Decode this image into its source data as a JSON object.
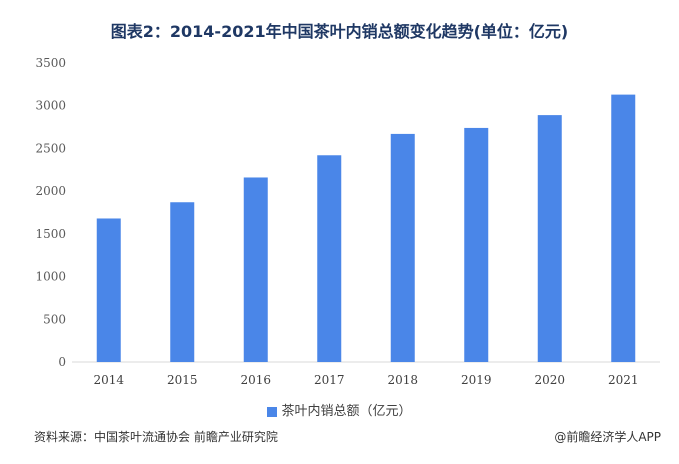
{
  "title": "图表2：2014-2021年中国茶叶内销总额变化趋势(单位：亿元)",
  "legend_label": "茶叶内销总额（亿元）",
  "source": "资料来源：中国茶叶流通协会 前瞻产业研究院",
  "brand": "@前瞻经济学人APP",
  "colors": {
    "bar": "#4a86e8",
    "axis": "#d9d9d9"
  },
  "chart_data": {
    "type": "bar",
    "categories": [
      "2014",
      "2015",
      "2016",
      "2017",
      "2018",
      "2019",
      "2020",
      "2021"
    ],
    "series": [
      {
        "name": "茶叶内销总额（亿元）",
        "values": [
          1680,
          1870,
          2160,
          2420,
          2670,
          2740,
          2890,
          3130
        ]
      }
    ],
    "ylim": [
      0,
      3500
    ],
    "yticks": [
      0,
      500,
      1000,
      1500,
      2000,
      2500,
      3000,
      3500
    ],
    "grid": false,
    "legend_position": "bottom"
  }
}
